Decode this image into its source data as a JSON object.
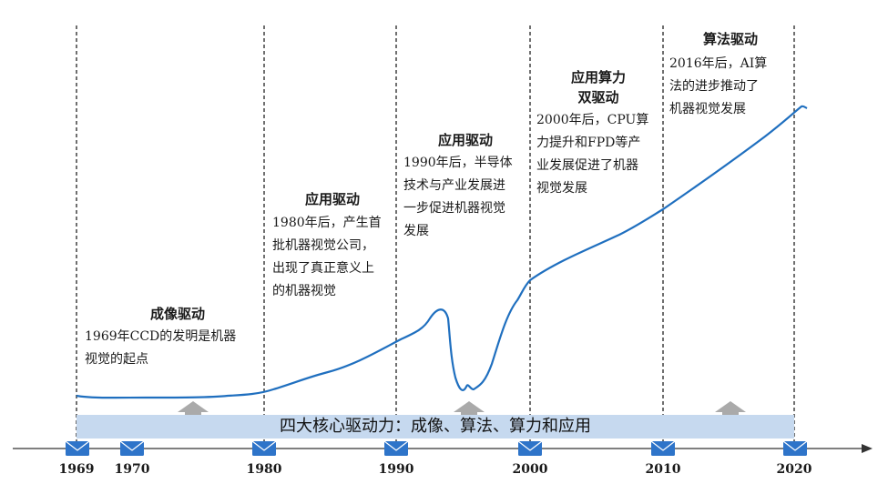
{
  "band_label": "四大核心驱动力：成像、算法、算力和应用",
  "stages": [
    {
      "title": "成像驱动",
      "desc": [
        "1969年CCD的发明是机器",
        "视觉的起点"
      ]
    },
    {
      "title": "应用驱动",
      "desc": [
        "1980年后，产生首",
        "批机器视觉公司，",
        "出现了真正意义上",
        "的机器视觉"
      ]
    },
    {
      "title": "应用驱动",
      "desc": [
        "1990年后，半导体",
        "技术与产业发展进",
        "一步促进机器视觉",
        "发展"
      ]
    },
    {
      "title_lines": [
        "应用算力",
        "双驱动"
      ],
      "desc": [
        "2000年后，CPU算",
        "力提升和FPD等产",
        "业发展促进了机器",
        "视觉发展"
      ]
    },
    {
      "title": "算法驱动",
      "desc": [
        "2016年后，AI算",
        "法的进步推动了",
        "机器视觉发展"
      ]
    }
  ],
  "years": [
    "1969",
    "1970",
    "1980",
    "1990",
    "2000",
    "2010",
    "2020"
  ],
  "colors": {
    "curve": "#1f6fbf",
    "band": "#c6d9ef",
    "marker": "#2e74c9",
    "arrow": "#aaaaaa",
    "dash": "#222222"
  }
}
